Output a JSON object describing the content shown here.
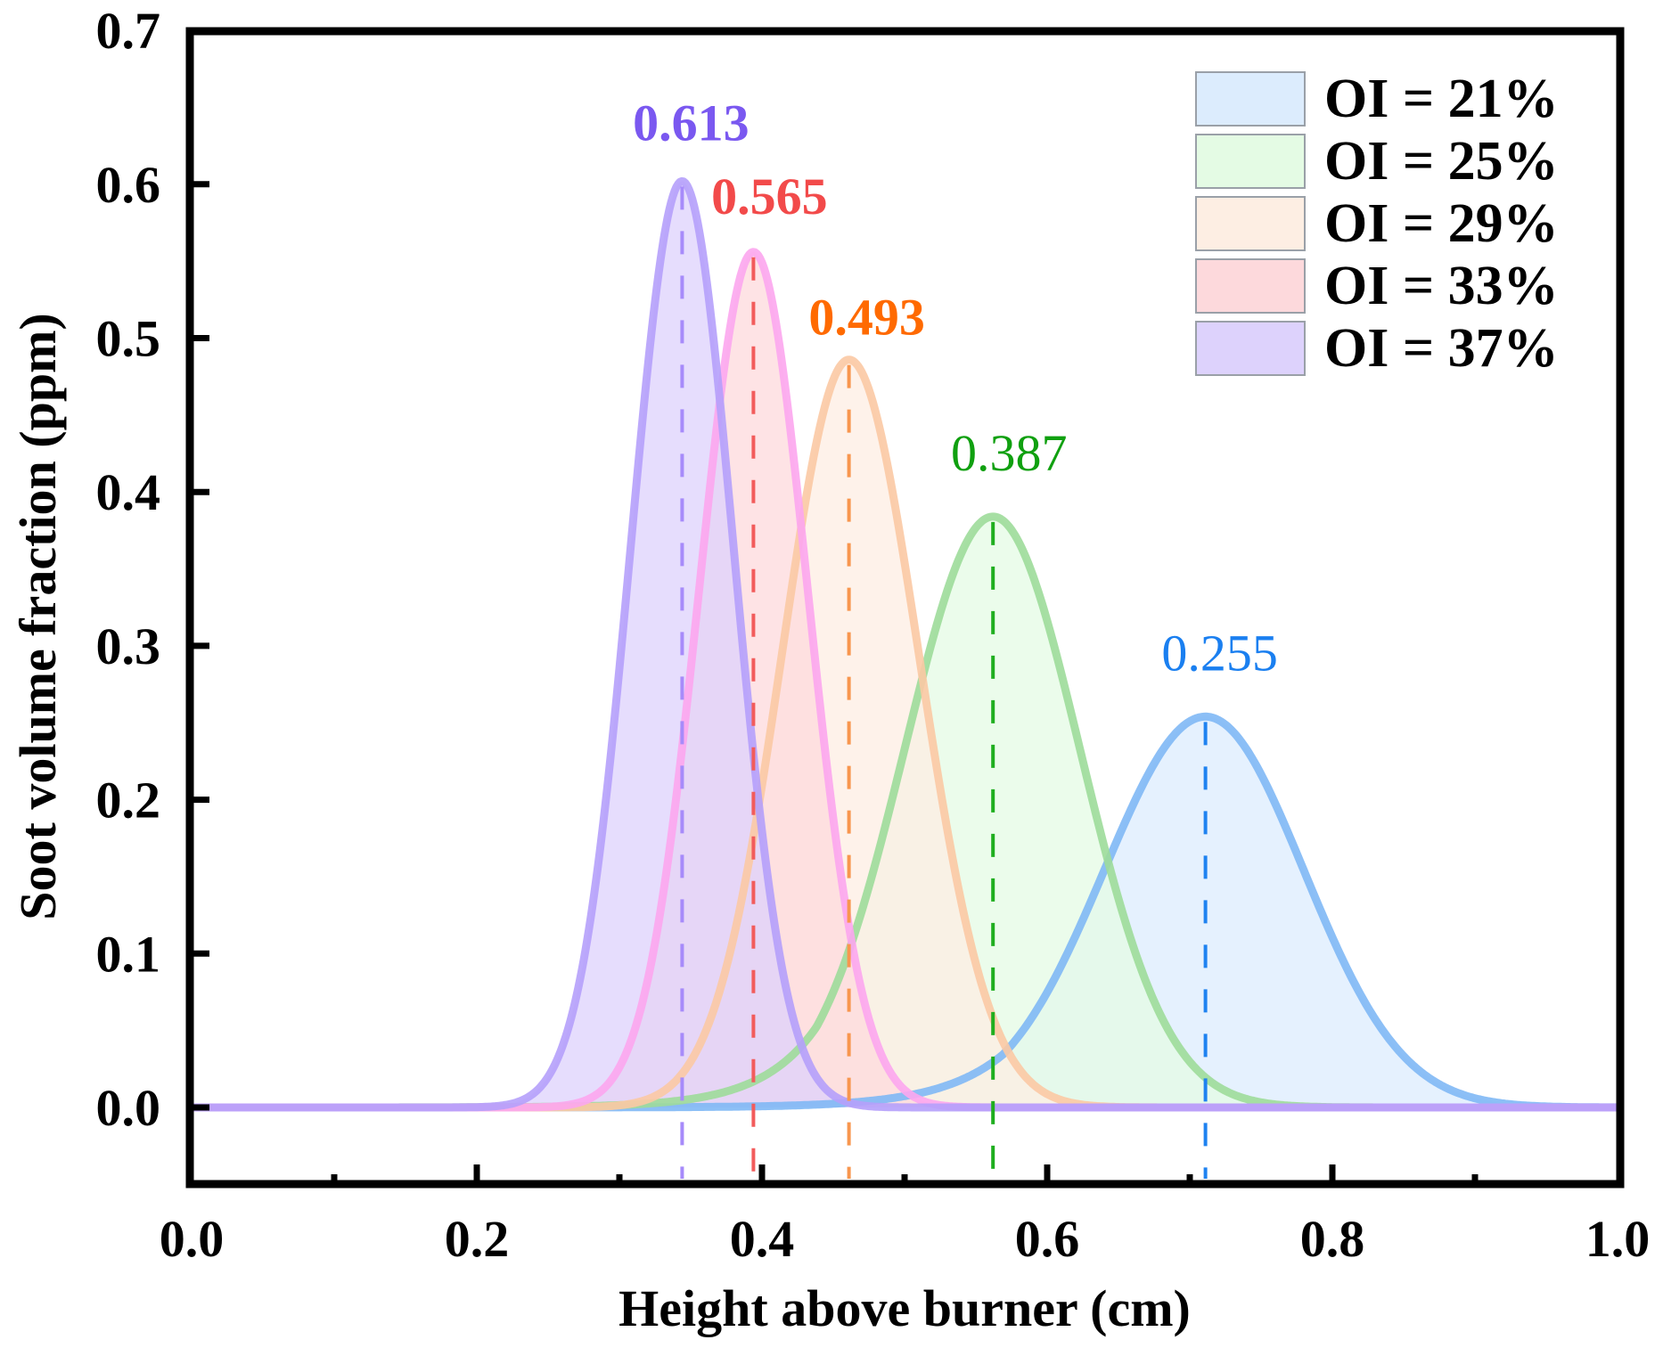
{
  "chart_data": {
    "type": "area",
    "title": "",
    "xlabel": "Height above burner (cm)",
    "ylabel": "Soot volume fraction (ppm)",
    "xlim": [
      0.0,
      1.0
    ],
    "ylim": [
      -0.05,
      0.7
    ],
    "x_ticks": [
      "0.0",
      "0.2",
      "0.4",
      "0.6",
      "0.8",
      "1.0"
    ],
    "x_tick_values": [
      0.0,
      0.2,
      0.4,
      0.6,
      0.8,
      1.0
    ],
    "x_minor_ticks": [
      0.1,
      0.3,
      0.5,
      0.7,
      0.9
    ],
    "y_ticks": [
      "0.0",
      "0.1",
      "0.2",
      "0.3",
      "0.4",
      "0.5",
      "0.6",
      "0.7"
    ],
    "y_tick_values": [
      0.0,
      0.1,
      0.2,
      0.3,
      0.4,
      0.5,
      0.6,
      0.7
    ],
    "grid": false,
    "legend_position": "top-right",
    "series": [
      {
        "name": "OI = 21%",
        "peak_x": 0.711,
        "peak_y": 0.254,
        "sigma_left": 0.071,
        "sigma_right": 0.069,
        "left_tail": true,
        "annotation": "0.255",
        "annotation_bold": false,
        "line_color": "#7fb8f5",
        "fill_color": "#dcecfd",
        "dash_color": "#1e82f0",
        "label_color": "#1a7ff0"
      },
      {
        "name": "OI = 25%",
        "peak_x": 0.562,
        "peak_y": 0.384,
        "sigma_left": 0.062,
        "sigma_right": 0.061,
        "left_tail": true,
        "annotation": "0.387",
        "annotation_bold": false,
        "line_color": "#9ddc9a",
        "fill_color": "#e4fbe4",
        "dash_color": "#1fae1f",
        "label_color": "#10a010"
      },
      {
        "name": "OI = 29%",
        "peak_x": 0.461,
        "peak_y": 0.486,
        "sigma_left": 0.047,
        "sigma_right": 0.049,
        "left_tail": false,
        "annotation": "0.493",
        "annotation_bold": true,
        "line_color": "#fbc9a4",
        "fill_color": "#fdeee3",
        "dash_color": "#f8964e",
        "label_color": "#ff6a00"
      },
      {
        "name": "OI = 33%",
        "peak_x": 0.394,
        "peak_y": 0.556,
        "sigma_left": 0.038,
        "sigma_right": 0.038,
        "left_tail": false,
        "annotation": "0.565",
        "annotation_bold": true,
        "line_color": "#fca6ee",
        "fill_color": "#fdd9dc",
        "dash_color": "#f25c5c",
        "label_color": "#f24a4a"
      },
      {
        "name": "OI = 37%",
        "peak_x": 0.344,
        "peak_y": 0.602,
        "sigma_left": 0.036,
        "sigma_right": 0.036,
        "left_tail": false,
        "annotation": "0.613",
        "annotation_bold": true,
        "line_color": "#b5a0fb",
        "fill_color": "#ddd2fc",
        "dash_color": "#a78bfa",
        "label_color": "#7a58f0"
      }
    ]
  }
}
